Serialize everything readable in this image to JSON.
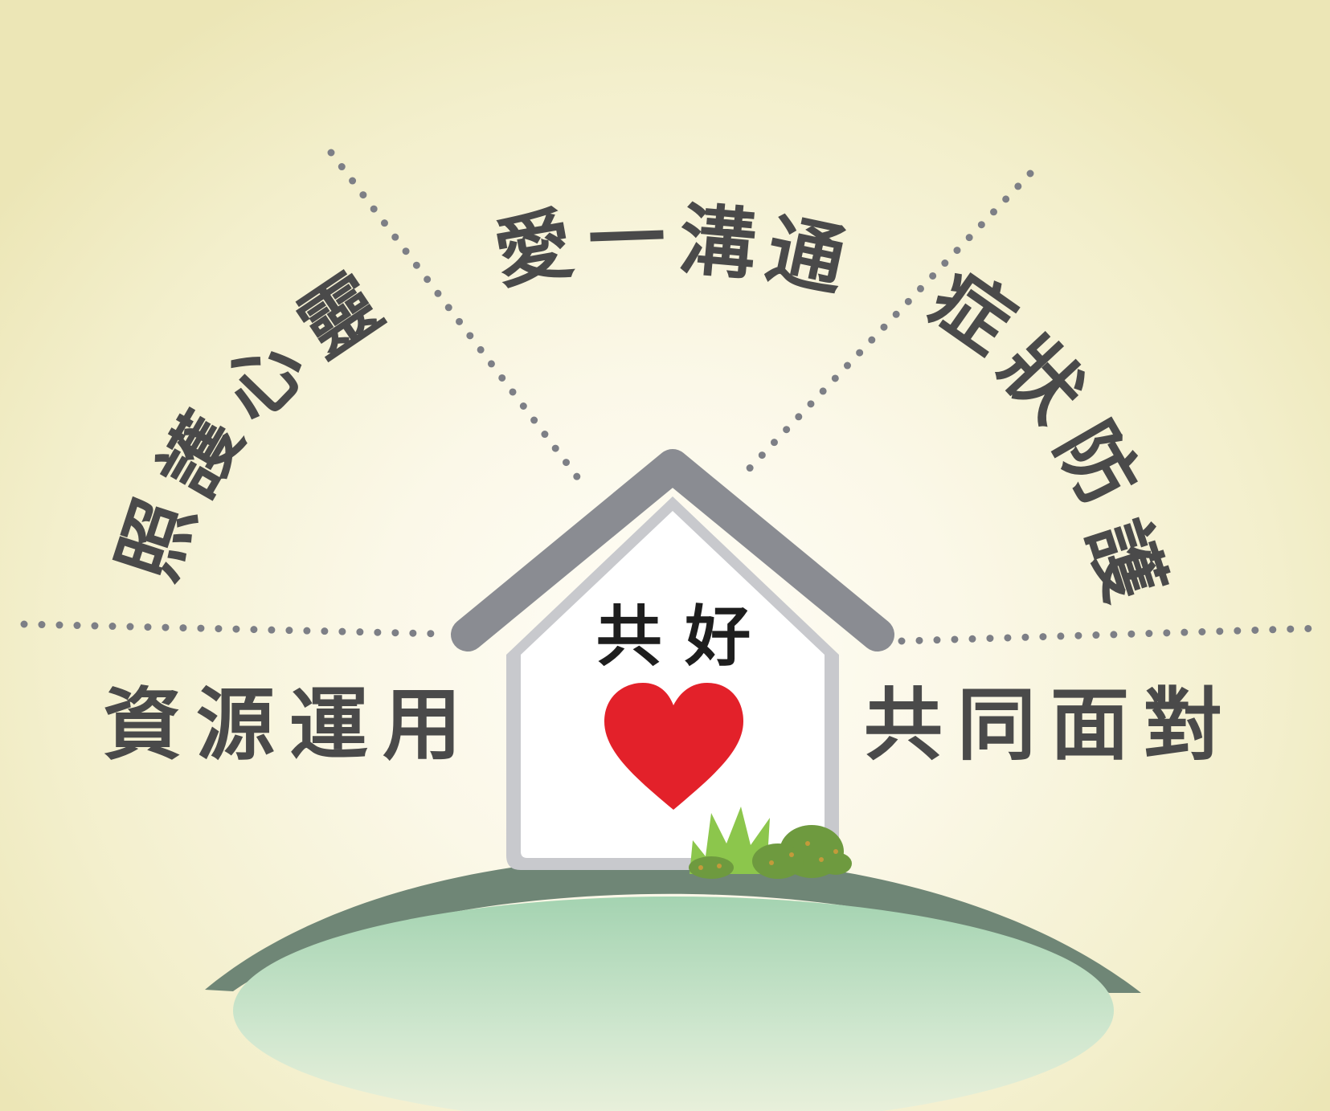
{
  "labels": {
    "top": [
      "愛",
      "一",
      "溝",
      "通"
    ],
    "upper_left": [
      "照",
      "護",
      "心",
      "靈"
    ],
    "upper_right": [
      "症",
      "狀",
      "防",
      "護"
    ],
    "bottom_left": "資源運用",
    "bottom_right": "共同面對",
    "house": "共 好"
  },
  "colors": {
    "text": "#4a4a4a",
    "dots": "#7d7f86",
    "roof": "#8a8c92",
    "heart": "#e3212a",
    "hill_dark": "#6f8676",
    "hill_light": "#a9d5b4",
    "bush": "#6e9a3f",
    "grass": "#8cc64c"
  }
}
